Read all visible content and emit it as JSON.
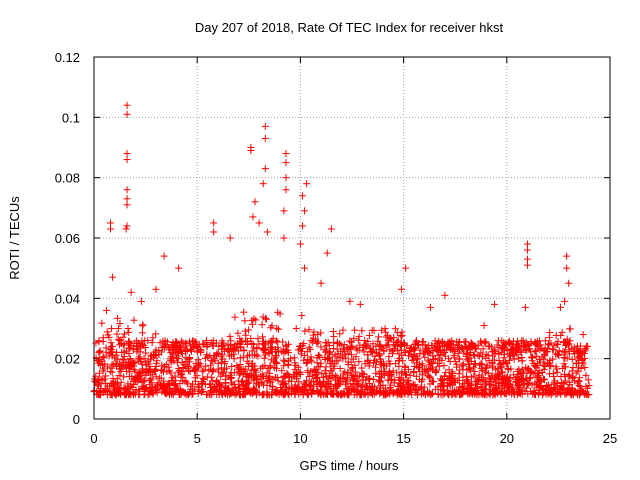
{
  "chart_data": {
    "type": "scatter",
    "title": "Day 207 of 2018, Rate Of TEC Index for receiver hkst",
    "xlabel": "GPS time / hours",
    "ylabel": "ROTI / TECUs",
    "xlim": [
      0,
      25
    ],
    "ylim": [
      0,
      0.12
    ],
    "xticks": [
      "0",
      "5",
      "10",
      "15",
      "20",
      "25"
    ],
    "yticks": [
      "0",
      "0.02",
      "0.04",
      "0.06",
      "0.08",
      "0.1",
      "0.12"
    ],
    "xtick_values": [
      0,
      5,
      10,
      15,
      20,
      25
    ],
    "ytick_values": [
      0,
      0.02,
      0.04,
      0.06,
      0.08,
      0.1,
      0.12
    ],
    "grid": true,
    "marker": "+",
    "color": "#ff0000",
    "data_range_x": [
      0,
      24
    ],
    "baseline_band": [
      0.004,
      0.022
    ],
    "series": [
      {
        "name": "ROTI",
        "notable_points": [
          {
            "x": 0.8,
            "y": 0.065
          },
          {
            "x": 0.8,
            "y": 0.063
          },
          {
            "x": 0.9,
            "y": 0.047
          },
          {
            "x": 1.6,
            "y": 0.104
          },
          {
            "x": 1.6,
            "y": 0.101
          },
          {
            "x": 1.6,
            "y": 0.088
          },
          {
            "x": 1.6,
            "y": 0.086
          },
          {
            "x": 1.6,
            "y": 0.076
          },
          {
            "x": 1.6,
            "y": 0.073
          },
          {
            "x": 1.6,
            "y": 0.071
          },
          {
            "x": 1.6,
            "y": 0.064
          },
          {
            "x": 1.55,
            "y": 0.063
          },
          {
            "x": 1.8,
            "y": 0.042
          },
          {
            "x": 3.4,
            "y": 0.054
          },
          {
            "x": 4.1,
            "y": 0.05
          },
          {
            "x": 5.8,
            "y": 0.065
          },
          {
            "x": 5.8,
            "y": 0.062
          },
          {
            "x": 6.6,
            "y": 0.06
          },
          {
            "x": 7.6,
            "y": 0.09
          },
          {
            "x": 7.6,
            "y": 0.089
          },
          {
            "x": 7.8,
            "y": 0.072
          },
          {
            "x": 7.7,
            "y": 0.067
          },
          {
            "x": 8.0,
            "y": 0.065
          },
          {
            "x": 8.3,
            "y": 0.097
          },
          {
            "x": 8.3,
            "y": 0.093
          },
          {
            "x": 8.3,
            "y": 0.083
          },
          {
            "x": 8.2,
            "y": 0.078
          },
          {
            "x": 8.4,
            "y": 0.062
          },
          {
            "x": 9.3,
            "y": 0.088
          },
          {
            "x": 9.3,
            "y": 0.085
          },
          {
            "x": 9.3,
            "y": 0.08
          },
          {
            "x": 9.3,
            "y": 0.076
          },
          {
            "x": 9.2,
            "y": 0.069
          },
          {
            "x": 9.2,
            "y": 0.06
          },
          {
            "x": 10.3,
            "y": 0.078
          },
          {
            "x": 10.1,
            "y": 0.074
          },
          {
            "x": 10.2,
            "y": 0.069
          },
          {
            "x": 10.1,
            "y": 0.064
          },
          {
            "x": 10.0,
            "y": 0.058
          },
          {
            "x": 10.2,
            "y": 0.05
          },
          {
            "x": 11.5,
            "y": 0.063
          },
          {
            "x": 11.3,
            "y": 0.055
          },
          {
            "x": 15.1,
            "y": 0.05
          },
          {
            "x": 21.0,
            "y": 0.058
          },
          {
            "x": 21.0,
            "y": 0.056
          },
          {
            "x": 21.0,
            "y": 0.053
          },
          {
            "x": 21.0,
            "y": 0.051
          },
          {
            "x": 22.9,
            "y": 0.054
          },
          {
            "x": 22.9,
            "y": 0.05
          },
          {
            "x": 23.0,
            "y": 0.045
          },
          {
            "x": 22.8,
            "y": 0.039
          },
          {
            "x": 22.6,
            "y": 0.037
          },
          {
            "x": 19.4,
            "y": 0.038
          },
          {
            "x": 17.0,
            "y": 0.041
          },
          {
            "x": 14.9,
            "y": 0.043
          },
          {
            "x": 16.3,
            "y": 0.037
          },
          {
            "x": 12.9,
            "y": 0.038
          },
          {
            "x": 12.4,
            "y": 0.039
          },
          {
            "x": 11.0,
            "y": 0.045
          },
          {
            "x": 3.0,
            "y": 0.043
          },
          {
            "x": 2.3,
            "y": 0.039
          },
          {
            "x": 0.6,
            "y": 0.036
          },
          {
            "x": 18.9,
            "y": 0.031
          },
          {
            "x": 20.9,
            "y": 0.037
          },
          {
            "x": 23.7,
            "y": 0.028
          }
        ]
      }
    ]
  }
}
